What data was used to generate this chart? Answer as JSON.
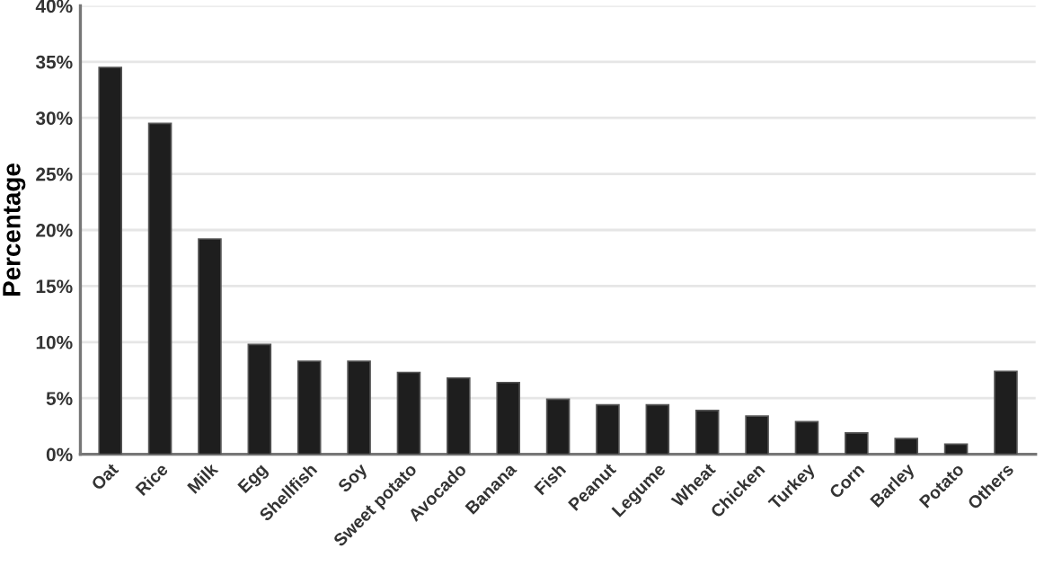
{
  "chart_data": {
    "type": "bar",
    "ylabel": "Percentage",
    "categories": [
      "Oat",
      "Rice",
      "Milk",
      "Egg",
      "Shellfish",
      "Soy",
      "Sweet potato",
      "Avocado",
      "Banana",
      "Fish",
      "Peanut",
      "Legume",
      "Wheat",
      "Chicken",
      "Turkey",
      "Corn",
      "Barley",
      "Potato",
      "Others"
    ],
    "values": [
      34.5,
      29.5,
      19.2,
      9.8,
      8.3,
      8.3,
      7.3,
      6.8,
      6.4,
      4.9,
      4.4,
      4.4,
      3.9,
      3.4,
      2.9,
      1.9,
      1.4,
      0.9,
      7.4
    ],
    "color": "#1e1e1e",
    "ylim": [
      0,
      40
    ],
    "yticks": [
      {
        "value": 0,
        "label": "0%"
      },
      {
        "value": 5,
        "label": "5%"
      },
      {
        "value": 10,
        "label": "10%"
      },
      {
        "value": 15,
        "label": "15%"
      },
      {
        "value": 20,
        "label": "20%"
      },
      {
        "value": 25,
        "label": "25%"
      },
      {
        "value": 30,
        "label": "30%"
      },
      {
        "value": 35,
        "label": "35%"
      },
      {
        "value": 40,
        "label": "40%"
      }
    ],
    "grid": "y"
  }
}
